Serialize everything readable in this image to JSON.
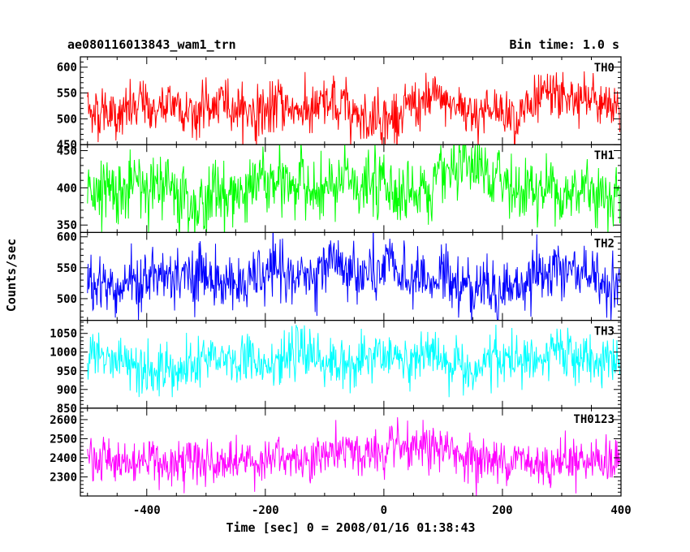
{
  "header": {
    "title": "ae080116013843_wam1_trn",
    "bin_time": "Bin time: 1.0 s"
  },
  "chart_data": {
    "type": "line",
    "xlabel": "Time [sec] 0 = 2008/01/16 01:38:43",
    "ylabel": "Counts/sec",
    "xlim": [
      -512,
      400
    ],
    "x_ticks": [
      -400,
      -200,
      0,
      200,
      400
    ],
    "x_minor_step": 50,
    "grid": false,
    "panels": [
      {
        "name": "TH0",
        "color": "#ff0000",
        "ylim": [
          450,
          620
        ],
        "yticks": [
          450,
          500,
          550,
          600
        ],
        "y_minor_step": 10,
        "mean": 520,
        "sigma": 24
      },
      {
        "name": "TH1",
        "color": "#00ff00",
        "ylim": [
          340,
          458
        ],
        "yticks": [
          350,
          400,
          450
        ],
        "y_minor_step": 10,
        "mean": 400,
        "sigma": 21
      },
      {
        "name": "TH2",
        "color": "#0000ff",
        "ylim": [
          465,
          607
        ],
        "yticks": [
          500,
          550,
          600
        ],
        "y_minor_step": 10,
        "mean": 530,
        "sigma": 23
      },
      {
        "name": "TH3",
        "color": "#00ffff",
        "ylim": [
          850,
          1085
        ],
        "yticks": [
          850,
          900,
          950,
          1000,
          1050
        ],
        "y_minor_step": 10,
        "mean": 975,
        "sigma": 32
      },
      {
        "name": "TH0123",
        "color": "#ff00ff",
        "ylim": [
          2200,
          2660
        ],
        "yticks": [
          2300,
          2400,
          2500,
          2600
        ],
        "y_minor_step": 20,
        "mean": 2400,
        "sigma": 55
      }
    ]
  }
}
